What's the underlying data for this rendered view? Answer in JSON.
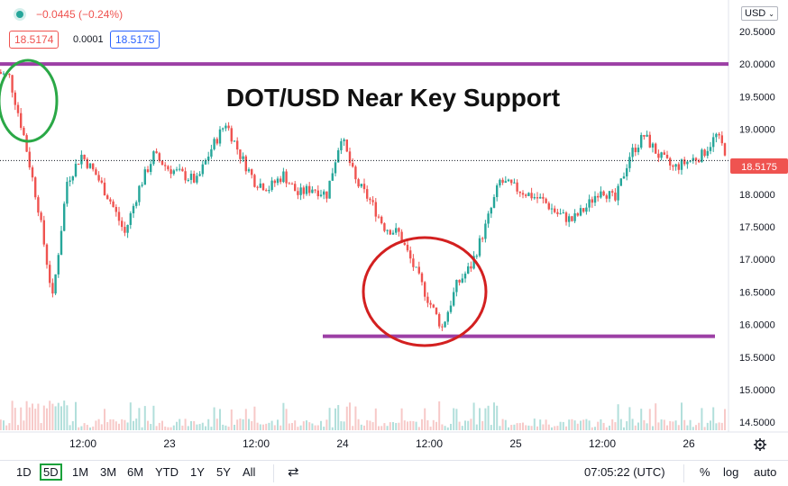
{
  "header": {
    "change_text": "−0.0445 (−0.24%)",
    "bid": "18.5174",
    "spread": "0.0001",
    "ask": "18.5175"
  },
  "currency_select": "USD",
  "annotation_title": "DOT/USD Near Key Support",
  "last_price_label": "18.5175",
  "toolbar": {
    "timeframes": [
      "1D",
      "5D",
      "1M",
      "3M",
      "6M",
      "YTD",
      "1Y",
      "5Y",
      "All"
    ],
    "active_timeframe": "5D",
    "clock": "07:05:22 (UTC)",
    "percent": "%",
    "log": "log",
    "auto": "auto"
  },
  "colors": {
    "up": "#26a69a",
    "down": "#ef5350",
    "resistance_line": "#9c3fa5",
    "support_line": "#9c3fa5",
    "green_circle": "#2aa846",
    "red_circle": "#d32020",
    "price_label_bg": "#ef5350",
    "active_frame": "#1aa13a"
  },
  "chart_data": {
    "type": "line",
    "title": "DOT/USD Near Key Support",
    "x_tick_labels": [
      "12:00",
      "23",
      "12:00",
      "24",
      "12:00",
      "25",
      "12:00",
      "26"
    ],
    "y_tick_labels": [
      "20.5000",
      "20.0000",
      "19.5000",
      "19.0000",
      "18.5000",
      "18.0000",
      "17.5000",
      "17.0000",
      "16.5000",
      "16.0000",
      "15.5000",
      "15.0000",
      "14.5000"
    ],
    "ylim": [
      14.35,
      20.9
    ],
    "series": [
      {
        "x": [
          "22 00:00",
          "22 02:00",
          "22 04:00",
          "22 06:00",
          "22 08:00",
          "22 10:00",
          "22 12:00",
          "22 14:00",
          "22 16:00",
          "22 18:00",
          "22 20:00",
          "22 22:00",
          "23 00:00",
          "23 02:00",
          "23 04:00",
          "23 06:00",
          "23 08:00",
          "23 10:00",
          "23 12:00",
          "23 14:00",
          "23 16:00",
          "23 18:00",
          "23 20:00",
          "23 22:00",
          "24 00:00",
          "24 02:00",
          "24 04:00",
          "24 06:00",
          "24 08:00",
          "24 10:00",
          "24 12:00",
          "24 14:00",
          "24 16:00",
          "24 18:00",
          "24 20:00",
          "24 22:00",
          "25 00:00",
          "25 02:00",
          "25 04:00",
          "25 06:00",
          "25 08:00",
          "25 10:00",
          "25 12:00",
          "25 14:00",
          "25 16:00",
          "25 18:00",
          "25 20:00",
          "25 22:00",
          "26 00:00",
          "26 02:00",
          "26 04:00",
          "26 06:00"
        ],
        "values": [
          19.9,
          19.8,
          18.9,
          17.8,
          16.4,
          18.2,
          18.6,
          18.3,
          17.9,
          17.4,
          18.1,
          18.6,
          18.4,
          18.3,
          18.2,
          18.7,
          19.1,
          18.6,
          18.2,
          18.1,
          18.3,
          18.0,
          18.1,
          18.0,
          18.9,
          18.2,
          17.9,
          17.5,
          17.4,
          16.9,
          16.4,
          15.95,
          16.6,
          16.9,
          17.5,
          18.2,
          18.1,
          18.0,
          17.9,
          17.7,
          17.6,
          17.8,
          18.1,
          17.9,
          18.6,
          18.9,
          18.6,
          18.4,
          18.5,
          18.6,
          18.9,
          18.52
        ]
      }
    ],
    "resistance_level": 20.0,
    "support_level": 15.82
  }
}
